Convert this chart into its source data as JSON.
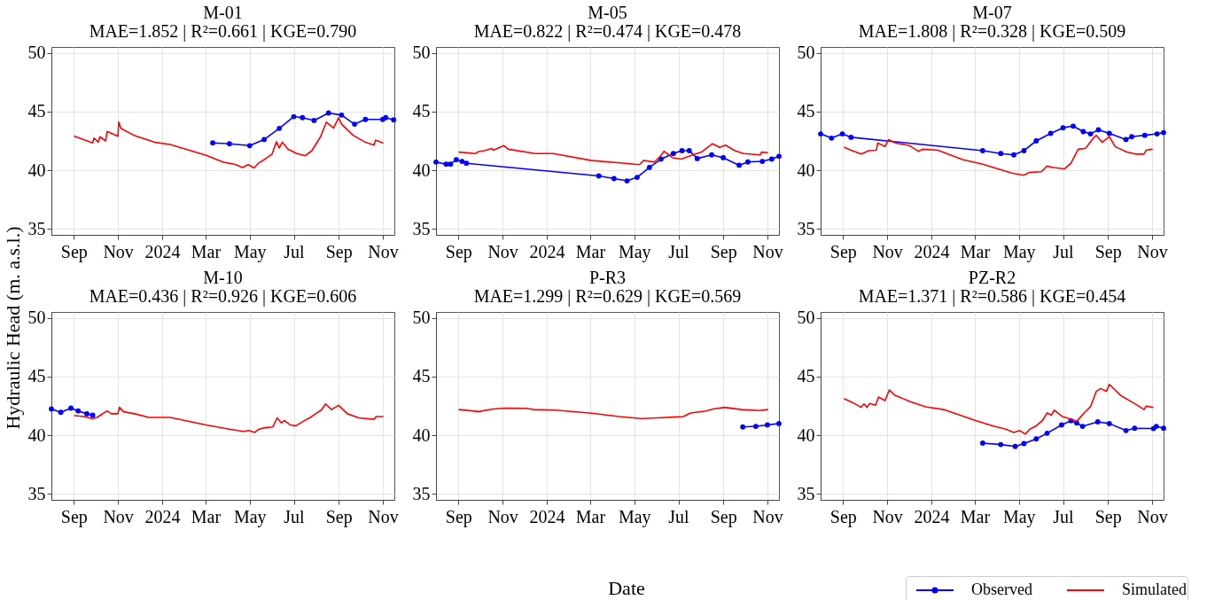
{
  "chart_data": [
    {
      "type": "line",
      "title": "M-01",
      "subtitle": "MAE=1.852 | R²=0.661 | KGE=0.790",
      "ylabel": "Hydraulic Head (m. a.s.l.)",
      "legend": "bottom right",
      "xlim": [
        "2023-08-01",
        "2024-11-17"
      ],
      "ylim": [
        34.5,
        50.5
      ],
      "xticks": [
        {
          "value": "2023-09-01",
          "label": "Sep"
        },
        {
          "value": "2023-11-01",
          "label": "Nov"
        },
        {
          "value": "2024-01-01",
          "label": "2024"
        },
        {
          "value": "2024-03-01",
          "label": "Mar"
        },
        {
          "value": "2024-05-01",
          "label": "May"
        },
        {
          "value": "2024-07-01",
          "label": "Jul"
        },
        {
          "value": "2024-09-01",
          "label": "Sep"
        },
        {
          "value": "2024-11-01",
          "label": "Nov"
        }
      ],
      "yticks": [
        35,
        40,
        45,
        50
      ],
      "grid": true,
      "series": [
        {
          "name": "Observed",
          "color": "#0000ff",
          "marker": "circle",
          "x": [
            "2024-03-11",
            "2024-04-03",
            "2024-05-01",
            "2024-05-21",
            "2024-06-11",
            "2024-07-01",
            "2024-07-13",
            "2024-07-29",
            "2024-08-18",
            "2024-09-05",
            "2024-09-23",
            "2024-10-08",
            "2024-11-01",
            "2024-11-05",
            "2024-11-16"
          ],
          "values": [
            42.33,
            42.26,
            42.1,
            42.62,
            43.57,
            44.57,
            44.48,
            44.24,
            44.88,
            44.7,
            43.93,
            44.33,
            44.33,
            44.48,
            44.29
          ]
        },
        {
          "name": "Simulated",
          "color": "#ff0000",
          "marker": "none",
          "x": [
            "2023-09-02",
            "2023-09-27",
            "2023-09-29",
            "2023-10-05",
            "2023-10-07",
            "2023-10-15",
            "2023-10-17",
            "2023-10-21",
            "2023-11-01",
            "2023-11-02",
            "2023-11-05",
            "2023-11-23",
            "2023-12-22",
            "2024-01-12",
            "2024-03-01",
            "2024-03-25",
            "2024-04-11",
            "2024-04-21",
            "2024-04-29",
            "2024-05-07",
            "2024-05-13",
            "2024-05-21",
            "2024-06-01",
            "2024-06-07",
            "2024-06-11",
            "2024-06-15",
            "2024-06-23",
            "2024-07-05",
            "2024-07-17",
            "2024-07-26",
            "2024-08-07",
            "2024-08-15",
            "2024-08-25",
            "2024-09-01",
            "2024-09-05",
            "2024-09-21",
            "2024-10-08",
            "2024-10-20",
            "2024-10-22",
            "2024-11-01"
          ],
          "values": [
            42.9,
            42.33,
            42.74,
            42.4,
            42.86,
            42.5,
            43.3,
            43.2,
            42.9,
            44.1,
            43.57,
            42.98,
            42.38,
            42.2,
            41.3,
            40.7,
            40.5,
            40.24,
            40.48,
            40.2,
            40.6,
            40.9,
            41.38,
            42.43,
            41.9,
            42.38,
            41.8,
            41.43,
            41.24,
            41.67,
            42.86,
            44.1,
            43.6,
            44.48,
            43.93,
            42.98,
            42.38,
            42.14,
            42.57,
            42.33
          ]
        }
      ]
    },
    {
      "type": "line",
      "title": "M-05",
      "subtitle": "MAE=0.822 | R²=0.474 | KGE=0.478",
      "xlim": [
        "2023-08-01",
        "2024-11-17"
      ],
      "ylim": [
        34.5,
        50.5
      ],
      "xticks": [
        {
          "value": "2023-09-01",
          "label": "Sep"
        },
        {
          "value": "2023-11-01",
          "label": "Nov"
        },
        {
          "value": "2024-01-01",
          "label": "2024"
        },
        {
          "value": "2024-03-01",
          "label": "Mar"
        },
        {
          "value": "2024-05-01",
          "label": "May"
        },
        {
          "value": "2024-07-01",
          "label": "Jul"
        },
        {
          "value": "2024-09-01",
          "label": "Sep"
        },
        {
          "value": "2024-11-01",
          "label": "Nov"
        }
      ],
      "yticks": [
        35,
        40,
        45,
        50
      ],
      "grid": true,
      "series": [
        {
          "color": "#0000ff",
          "marker": "circle",
          "x": [
            "2023-08-01",
            "2023-08-15",
            "2023-08-21",
            "2023-08-29",
            "2023-09-06",
            "2023-09-12",
            "2024-03-13",
            "2024-04-03",
            "2024-04-21",
            "2024-05-05",
            "2024-05-22",
            "2024-06-07",
            "2024-06-24",
            "2024-07-06",
            "2024-07-16",
            "2024-07-27",
            "2024-08-16",
            "2024-09-01",
            "2024-09-23",
            "2024-10-05",
            "2024-10-25",
            "2024-11-07",
            "2024-11-17"
          ],
          "values": [
            40.7,
            40.52,
            40.52,
            40.9,
            40.76,
            40.6,
            39.52,
            39.29,
            39.1,
            39.4,
            40.24,
            40.95,
            41.43,
            41.67,
            41.67,
            41.0,
            41.31,
            41.07,
            40.43,
            40.71,
            40.76,
            40.95,
            41.19
          ]
        },
        {
          "color": "#ff0000",
          "marker": "none",
          "x": [
            "2023-09-02",
            "2023-09-25",
            "2023-09-29",
            "2023-10-07",
            "2023-10-17",
            "2023-10-19",
            "2023-11-03",
            "2023-11-09",
            "2023-12-16",
            "2024-01-10",
            "2024-03-03",
            "2024-04-18",
            "2024-05-08",
            "2024-05-14",
            "2024-05-29",
            "2024-06-06",
            "2024-06-11",
            "2024-06-23",
            "2024-07-05",
            "2024-07-21",
            "2024-08-02",
            "2024-08-17",
            "2024-08-27",
            "2024-09-04",
            "2024-09-17",
            "2024-09-29",
            "2024-10-22",
            "2024-10-24",
            "2024-11-01"
          ],
          "values": [
            41.55,
            41.43,
            41.6,
            41.67,
            41.86,
            41.7,
            42.1,
            41.79,
            41.43,
            41.43,
            40.83,
            40.6,
            40.48,
            40.83,
            40.71,
            41.19,
            41.62,
            41.07,
            40.95,
            41.31,
            41.55,
            42.26,
            41.95,
            42.14,
            41.67,
            41.43,
            41.31,
            41.55,
            41.5
          ]
        }
      ]
    },
    {
      "type": "line",
      "title": "M-07",
      "subtitle": "MAE=1.808 | R²=0.328 | KGE=0.509",
      "xlim": [
        "2023-08-01",
        "2024-11-17"
      ],
      "ylim": [
        34.5,
        50.5
      ],
      "xticks": [
        {
          "value": "2023-09-01",
          "label": "Sep"
        },
        {
          "value": "2023-11-01",
          "label": "Nov"
        },
        {
          "value": "2024-01-01",
          "label": "2024"
        },
        {
          "value": "2024-03-01",
          "label": "Mar"
        },
        {
          "value": "2024-05-01",
          "label": "May"
        },
        {
          "value": "2024-07-01",
          "label": "Jul"
        },
        {
          "value": "2024-09-01",
          "label": "Sep"
        },
        {
          "value": "2024-11-01",
          "label": "Nov"
        }
      ],
      "yticks": [
        35,
        40,
        45,
        50
      ],
      "grid": true,
      "series": [
        {
          "color": "#0000ff",
          "marker": "circle",
          "x": [
            "2023-08-01",
            "2023-08-16",
            "2023-08-31",
            "2023-09-12",
            "2024-03-12",
            "2024-04-06",
            "2024-04-24",
            "2024-05-08",
            "2024-05-25",
            "2024-06-14",
            "2024-07-01",
            "2024-07-15",
            "2024-07-29",
            "2024-08-08",
            "2024-08-19",
            "2024-09-03",
            "2024-09-26",
            "2024-10-04",
            "2024-10-22",
            "2024-11-08",
            "2024-11-17"
          ],
          "values": [
            43.1,
            42.74,
            43.1,
            42.81,
            41.67,
            41.43,
            41.31,
            41.67,
            42.5,
            43.14,
            43.62,
            43.76,
            43.29,
            43.1,
            43.45,
            43.14,
            42.62,
            42.86,
            42.98,
            43.1,
            43.21
          ]
        },
        {
          "color": "#ff0000",
          "marker": "none",
          "x": [
            "2023-09-03",
            "2023-09-12",
            "2023-09-26",
            "2023-10-07",
            "2023-10-17",
            "2023-10-19",
            "2023-10-29",
            "2023-11-03",
            "2023-11-12",
            "2023-12-02",
            "2023-12-14",
            "2023-12-20",
            "2024-01-10",
            "2024-02-14",
            "2024-03-12",
            "2024-04-21",
            "2024-05-08",
            "2024-05-15",
            "2024-06-01",
            "2024-06-09",
            "2024-06-17",
            "2024-07-03",
            "2024-07-12",
            "2024-07-22",
            "2024-08-01",
            "2024-08-12",
            "2024-08-16",
            "2024-08-24",
            "2024-09-03",
            "2024-09-11",
            "2024-09-27",
            "2024-10-09",
            "2024-10-21",
            "2024-10-24",
            "2024-11-01"
          ],
          "values": [
            41.95,
            41.71,
            41.38,
            41.67,
            41.71,
            42.33,
            42.02,
            42.62,
            42.33,
            42.1,
            41.62,
            41.79,
            41.71,
            40.9,
            40.52,
            39.76,
            39.57,
            39.81,
            39.88,
            40.36,
            40.24,
            40.12,
            40.6,
            41.79,
            41.86,
            42.74,
            42.98,
            42.38,
            42.86,
            42.02,
            41.55,
            41.38,
            41.38,
            41.71,
            41.79
          ]
        }
      ]
    },
    {
      "type": "line",
      "title": "M-10",
      "subtitle": "MAE=0.436 | R²=0.926 | KGE=0.606",
      "xlim": [
        "2023-08-01",
        "2024-11-17"
      ],
      "ylim": [
        34.5,
        50.5
      ],
      "xticks": [
        {
          "value": "2023-09-01",
          "label": "Sep"
        },
        {
          "value": "2023-11-01",
          "label": "Nov"
        },
        {
          "value": "2024-01-01",
          "label": "2024"
        },
        {
          "value": "2024-03-01",
          "label": "Mar"
        },
        {
          "value": "2024-05-01",
          "label": "May"
        },
        {
          "value": "2024-07-01",
          "label": "Jul"
        },
        {
          "value": "2024-09-01",
          "label": "Sep"
        },
        {
          "value": "2024-11-01",
          "label": "Nov"
        }
      ],
      "yticks": [
        35,
        40,
        45,
        50
      ],
      "grid": true,
      "series": [
        {
          "color": "#0000ff",
          "marker": "circle",
          "x": [
            "2023-08-01",
            "2023-08-14",
            "2023-08-28",
            "2023-09-07",
            "2023-09-19",
            "2023-09-27"
          ],
          "values": [
            42.24,
            41.95,
            42.31,
            42.07,
            41.83,
            41.71
          ]
        },
        {
          "color": "#ff0000",
          "marker": "none",
          "x": [
            "2023-09-02",
            "2023-09-15",
            "2023-09-27",
            "2023-10-03",
            "2023-10-17",
            "2023-10-23",
            "2023-11-01",
            "2023-11-03",
            "2023-11-09",
            "2023-11-24",
            "2023-12-14",
            "2024-01-12",
            "2024-03-02",
            "2024-04-03",
            "2024-04-22",
            "2024-04-30",
            "2024-05-08",
            "2024-05-14",
            "2024-05-22",
            "2024-06-02",
            "2024-06-08",
            "2024-06-14",
            "2024-06-18",
            "2024-06-26",
            "2024-07-04",
            "2024-07-14",
            "2024-07-24",
            "2024-07-31",
            "2024-08-08",
            "2024-08-14",
            "2024-08-22",
            "2024-09-01",
            "2024-09-13",
            "2024-09-29",
            "2024-10-20",
            "2024-10-23",
            "2024-11-01"
          ],
          "values": [
            41.67,
            41.6,
            41.4,
            41.52,
            42.07,
            41.83,
            41.83,
            42.38,
            42.0,
            41.83,
            41.52,
            41.52,
            40.88,
            40.52,
            40.33,
            40.4,
            40.24,
            40.52,
            40.64,
            40.71,
            41.48,
            41.05,
            41.24,
            40.88,
            40.81,
            41.19,
            41.52,
            41.83,
            42.14,
            42.67,
            42.19,
            42.55,
            41.83,
            41.48,
            41.36,
            41.6,
            41.6
          ]
        }
      ]
    },
    {
      "type": "line",
      "title": "P-R3",
      "subtitle": "MAE=1.299 | R²=0.629 | KGE=0.569",
      "xlabel": "Date",
      "xlim": [
        "2023-08-01",
        "2024-11-17"
      ],
      "ylim": [
        34.5,
        50.5
      ],
      "xticks": [
        {
          "value": "2023-09-01",
          "label": "Sep"
        },
        {
          "value": "2023-11-01",
          "label": "Nov"
        },
        {
          "value": "2024-01-01",
          "label": "2024"
        },
        {
          "value": "2024-03-01",
          "label": "Mar"
        },
        {
          "value": "2024-05-01",
          "label": "May"
        },
        {
          "value": "2024-07-01",
          "label": "Jul"
        },
        {
          "value": "2024-09-01",
          "label": "Sep"
        },
        {
          "value": "2024-11-01",
          "label": "Nov"
        }
      ],
      "yticks": [
        35,
        40,
        45,
        50
      ],
      "grid": true,
      "series": [
        {
          "color": "#0000ff",
          "marker": "circle",
          "x": [
            "2024-09-28",
            "2024-10-16",
            "2024-11-01",
            "2024-11-17"
          ],
          "values": [
            40.71,
            40.76,
            40.88,
            41.0
          ]
        },
        {
          "color": "#ff0000",
          "marker": "none",
          "x": [
            "2023-09-02",
            "2023-09-29",
            "2023-10-19",
            "2023-11-05",
            "2023-12-03",
            "2023-12-15",
            "2024-01-13",
            "2024-03-03",
            "2024-04-10",
            "2024-05-10",
            "2024-06-03",
            "2024-07-08",
            "2024-07-18",
            "2024-08-08",
            "2024-08-18",
            "2024-09-03",
            "2024-09-26",
            "2024-10-21",
            "2024-11-01"
          ],
          "values": [
            42.19,
            42.02,
            42.24,
            42.31,
            42.29,
            42.19,
            42.14,
            41.88,
            41.6,
            41.43,
            41.48,
            41.6,
            41.9,
            42.07,
            42.24,
            42.38,
            42.19,
            42.1,
            42.19
          ]
        }
      ]
    },
    {
      "type": "line",
      "title": "PZ-R2",
      "subtitle": "MAE=1.371 | R²=0.586 | KGE=0.454",
      "xlim": [
        "2023-08-01",
        "2024-11-17"
      ],
      "ylim": [
        34.5,
        50.5
      ],
      "xticks": [
        {
          "value": "2023-09-01",
          "label": "Sep"
        },
        {
          "value": "2023-11-01",
          "label": "Nov"
        },
        {
          "value": "2024-01-01",
          "label": "2024"
        },
        {
          "value": "2024-03-01",
          "label": "Mar"
        },
        {
          "value": "2024-05-01",
          "label": "May"
        },
        {
          "value": "2024-07-01",
          "label": "Jul"
        },
        {
          "value": "2024-09-01",
          "label": "Sep"
        },
        {
          "value": "2024-11-01",
          "label": "Nov"
        }
      ],
      "yticks": [
        35,
        40,
        45,
        50
      ],
      "grid": true,
      "series": [
        {
          "color": "#0000ff",
          "marker": "circle",
          "x": [
            "2024-03-12",
            "2024-04-06",
            "2024-04-26",
            "2024-05-08",
            "2024-05-25",
            "2024-06-09",
            "2024-06-29",
            "2024-07-12",
            "2024-07-20",
            "2024-07-28",
            "2024-08-18",
            "2024-09-03",
            "2024-09-26",
            "2024-10-08",
            "2024-11-03",
            "2024-11-07",
            "2024-11-17"
          ],
          "values": [
            39.33,
            39.21,
            39.05,
            39.29,
            39.69,
            40.17,
            40.88,
            41.24,
            41.05,
            40.76,
            41.14,
            41.0,
            40.4,
            40.6,
            40.57,
            40.76,
            40.6
          ]
        },
        {
          "color": "#ff0000",
          "marker": "none",
          "x": [
            "2023-09-03",
            "2023-09-14",
            "2023-09-26",
            "2023-09-30",
            "2023-10-04",
            "2023-10-08",
            "2023-10-16",
            "2023-10-20",
            "2023-10-29",
            "2023-11-04",
            "2023-11-11",
            "2023-12-03",
            "2023-12-24",
            "2024-01-18",
            "2024-03-03",
            "2024-03-28",
            "2024-04-13",
            "2024-04-24",
            "2024-05-02",
            "2024-05-10",
            "2024-05-16",
            "2024-05-24",
            "2024-06-03",
            "2024-06-09",
            "2024-06-15",
            "2024-06-19",
            "2024-06-30",
            "2024-07-12",
            "2024-07-20",
            "2024-07-31",
            "2024-08-08",
            "2024-08-16",
            "2024-08-22",
            "2024-08-30",
            "2024-09-03",
            "2024-09-19",
            "2024-10-10",
            "2024-10-21",
            "2024-10-24",
            "2024-11-02"
          ],
          "values": [
            43.1,
            42.79,
            42.38,
            42.67,
            42.38,
            42.71,
            42.55,
            43.26,
            42.95,
            43.86,
            43.43,
            42.86,
            42.43,
            42.19,
            41.24,
            40.76,
            40.52,
            40.24,
            40.4,
            40.1,
            40.52,
            40.76,
            41.29,
            41.9,
            41.71,
            42.14,
            41.6,
            41.36,
            41.19,
            41.95,
            42.43,
            43.74,
            43.98,
            43.74,
            44.33,
            43.38,
            42.62,
            42.19,
            42.48,
            42.38
          ]
        }
      ]
    }
  ]
}
